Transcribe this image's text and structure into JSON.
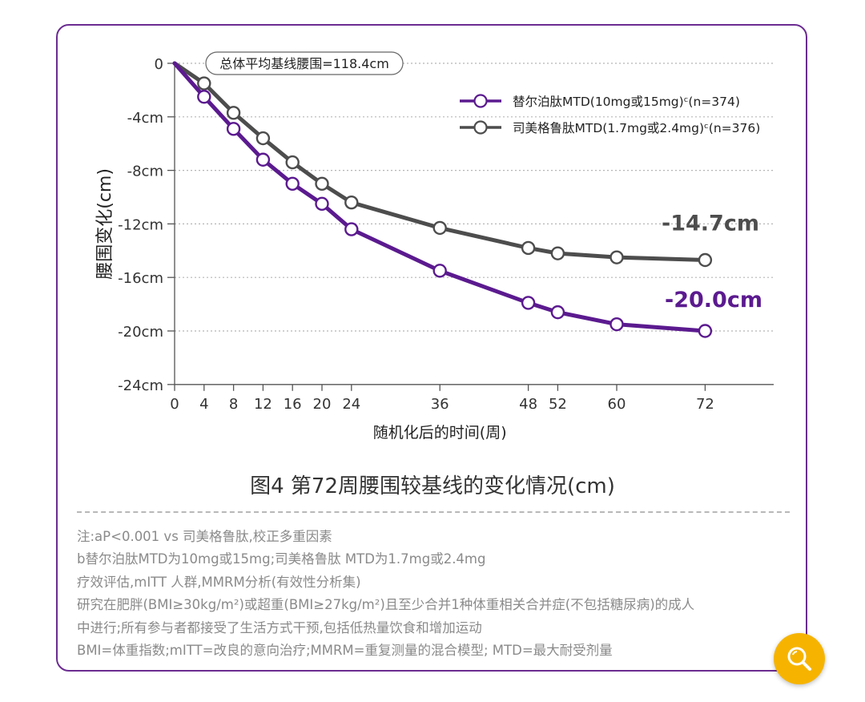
{
  "chart_data": {
    "type": "line",
    "title": "",
    "xlabel": "随机化后的时间(周)",
    "ylabel": "腰围变化(cm)",
    "x_ticks": [
      0,
      4,
      8,
      12,
      16,
      20,
      24,
      36,
      48,
      52,
      60,
      72
    ],
    "y_ticks": [
      "0",
      "-4cm",
      "-8cm",
      "-12cm",
      "-16cm",
      "-20cm",
      "-24cm"
    ],
    "ylim": [
      -24,
      0
    ],
    "grid": "horizontal-dotted",
    "legend_position": "top-right",
    "baseline_label": "总体平均基线腰围=118.4cm",
    "series": [
      {
        "name": "替尔泊肽MTD(10mg或15mg)ᶜ(n=374)",
        "color": "#5b1a8f",
        "end_label": "-20.0cm",
        "x": [
          0,
          4,
          8,
          12,
          16,
          20,
          24,
          36,
          48,
          52,
          60,
          72
        ],
        "y": [
          0,
          -2.5,
          -4.9,
          -7.2,
          -9.0,
          -10.5,
          -12.4,
          -15.5,
          -17.9,
          -18.6,
          -19.5,
          -20.0
        ]
      },
      {
        "name": "司美格鲁肽MTD(1.7mg或2.4mg)ᶜ(n=376)",
        "color": "#4d4d4d",
        "end_label": "-14.7cm",
        "x": [
          0,
          4,
          8,
          12,
          16,
          20,
          24,
          36,
          48,
          52,
          60,
          72
        ],
        "y": [
          0,
          -1.5,
          -3.7,
          -5.6,
          -7.4,
          -9.0,
          -10.4,
          -12.3,
          -13.8,
          -14.2,
          -14.5,
          -14.7
        ]
      }
    ]
  },
  "caption": "图4 第72周腰围较基线的变化情况(cm)",
  "notes": [
    "注:aP<0.001 vs 司美格鲁肽,校正多重因素",
    "b替尔泊肽MTD为10mg或15mg;司美格鲁肽 MTD为1.7mg或2.4mg",
    "疗效评估,mITT 人群,MMRM分析(有效性分析集)",
    "研究在肥胖(BMI≥30kg/m²)或超重(BMI≥27kg/m²)且至少合并1种体重相关合并症(不包括糖尿病)的成人",
    "中进行;所有参与者都接受了生活方式干预,包括低热量饮食和增加运动",
    "BMI=体重指数;mITT=改良的意向治疗;MMRM=重复测量的混合模型; MTD=最大耐受剂量"
  ],
  "search_button": {
    "icon": "search-icon"
  },
  "colors": {
    "frame": "#6b2c91",
    "accent": "#f6b400"
  }
}
